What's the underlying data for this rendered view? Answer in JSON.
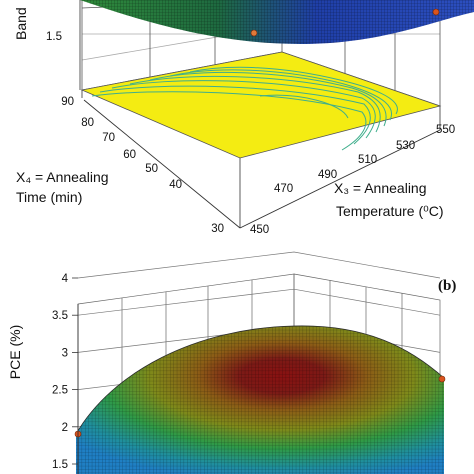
{
  "chart_data": [
    {
      "panel": "",
      "type": "surface",
      "zlabel": "Band",
      "z_ticks": [
        "1.5"
      ],
      "xlabel_lines": [
        "X₃ = Annealing",
        "Temperature (⁰C)"
      ],
      "x_ticks": [
        "450",
        "470",
        "490",
        "510",
        "530",
        "550"
      ],
      "ylabel_lines": [
        "X₄ = Annealing",
        "Time (min)"
      ],
      "y_ticks": [
        "30",
        "40",
        "50",
        "60",
        "70",
        "80",
        "90"
      ],
      "floor_contour": true,
      "colors": {
        "floor": "#f4ec12",
        "contour": "#3fae8c",
        "surface_low": "#1f3fb8",
        "surface_high": "#1e8a3a",
        "point": "#d9541e"
      }
    },
    {
      "panel": "(b)",
      "type": "surface",
      "zlabel": "PCE (%)",
      "z_ticks": [
        "1.5",
        "2",
        "2.5",
        "3",
        "3.5",
        "4"
      ],
      "zlim": [
        1.5,
        4
      ],
      "grid": true,
      "colors": {
        "surface_low": "#2a7fb8",
        "surface_mid": "#9c8b1e",
        "surface_high": "#7a1010",
        "point": "#d9541e"
      }
    }
  ]
}
